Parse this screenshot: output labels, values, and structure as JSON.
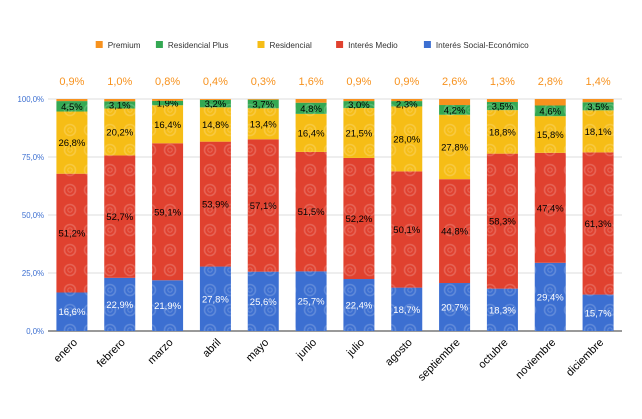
{
  "chart_data": {
    "type": "bar",
    "stacked": true,
    "title": "",
    "xlabel": "",
    "ylabel": "",
    "ylim": [
      0,
      100
    ],
    "y_ticks": [
      "0,0%",
      "25,0%",
      "50,0%",
      "75,0%",
      "100,0%"
    ],
    "grid": true,
    "legend_position": "top",
    "categories": [
      "enero",
      "febrero",
      "marzo",
      "abril",
      "mayo",
      "junio",
      "julio",
      "agosto",
      "septiembre",
      "octubre",
      "noviembre",
      "diciembre"
    ],
    "series": [
      {
        "name": "Interés Social-Económico",
        "color": "#3c6fd1",
        "values": [
          16.6,
          22.9,
          21.9,
          27.8,
          25.6,
          25.7,
          22.4,
          18.7,
          20.7,
          18.3,
          29.4,
          15.7
        ],
        "labels": [
          "16,6%",
          "22,9%",
          "21,9%",
          "27,8%",
          "25,6%",
          "25,7%",
          "22,4%",
          "18,7%",
          "20,7%",
          "18,3%",
          "29,4%",
          "15,7%"
        ],
        "label_color": "#ffffff"
      },
      {
        "name": "Interés Medio",
        "color": "#e0412f",
        "values": [
          51.2,
          52.7,
          59.1,
          53.9,
          57.1,
          51.5,
          52.2,
          50.1,
          44.8,
          58.3,
          47.4,
          61.3
        ],
        "labels": [
          "51,2%",
          "52,7%",
          "59,1%",
          "53,9%",
          "57,1%",
          "51,5%",
          "52,2%",
          "50,1%",
          "44,8%",
          "58,3%",
          "47,4%",
          "61,3%"
        ],
        "label_color": "#000000"
      },
      {
        "name": "Residencial",
        "color": "#f6bd16",
        "values": [
          26.8,
          20.2,
          16.4,
          14.8,
          13.4,
          16.4,
          21.5,
          28.0,
          27.8,
          18.8,
          15.8,
          18.1
        ],
        "labels": [
          "26,8%",
          "20,2%",
          "16,4%",
          "14,8%",
          "13,4%",
          "16,4%",
          "21,5%",
          "28,0%",
          "27,8%",
          "18,8%",
          "15,8%",
          "18,1%"
        ],
        "label_color": "#000000"
      },
      {
        "name": "Residencial Plus",
        "color": "#34a853",
        "values": [
          4.5,
          3.1,
          1.9,
          3.2,
          3.7,
          4.8,
          3.0,
          2.3,
          4.2,
          3.5,
          4.6,
          3.5
        ],
        "labels": [
          "4,5%",
          "3,1%",
          "1,9%",
          "3,2%",
          "3,7%",
          "4,8%",
          "3,0%",
          "2,3%",
          "4,2%",
          "3,5%",
          "4,6%",
          "3,5%"
        ],
        "label_color": "#000000"
      },
      {
        "name": "Premium",
        "color": "#f7921e",
        "values": [
          0.9,
          1.0,
          0.8,
          0.4,
          0.3,
          1.6,
          0.9,
          0.9,
          2.6,
          1.3,
          2.8,
          1.4
        ],
        "labels": [
          "0,9%",
          "1,0%",
          "0,8%",
          "0,4%",
          "0,3%",
          "1,6%",
          "0,9%",
          "0,9%",
          "2,6%",
          "1,3%",
          "2,8%",
          "1,4%"
        ],
        "label_color": "#f7921e"
      }
    ],
    "legend_order": [
      "Premium",
      "Residencial Plus",
      "Residencial",
      "Interés Medio",
      "Interés Social-Económico"
    ]
  }
}
